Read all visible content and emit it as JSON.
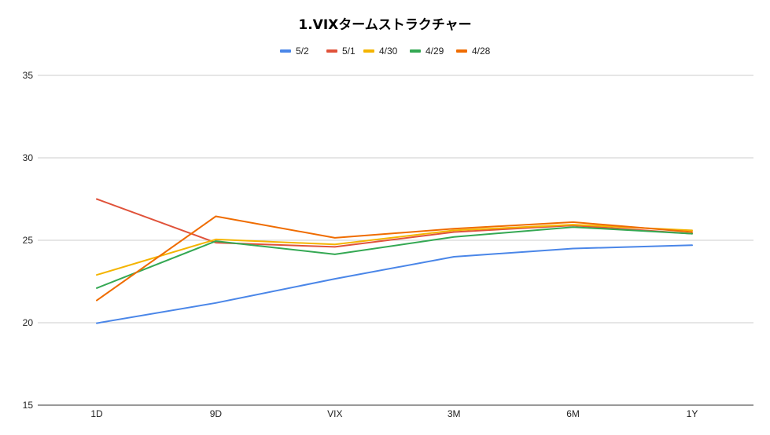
{
  "chart_data": {
    "type": "line",
    "title": "1.VIXタームストラクチャー",
    "xlabel": "",
    "ylabel": "",
    "categories": [
      "1D",
      "9D",
      "VIX",
      "3M",
      "6M",
      "1Y"
    ],
    "ylim": [
      15,
      35
    ],
    "yticks": [
      15,
      20,
      25,
      30,
      35
    ],
    "grid": true,
    "legend_position": "top",
    "series": [
      {
        "name": "5/2",
        "color": "#4a86e8",
        "values": [
          19.97,
          21.2,
          22.66,
          24.0,
          24.5,
          24.7
        ]
      },
      {
        "name": "5/1",
        "color": "#e0523a",
        "values": [
          27.5,
          24.85,
          24.6,
          25.5,
          25.9,
          25.4
        ]
      },
      {
        "name": "4/30",
        "color": "#f4b400",
        "values": [
          22.9,
          25.05,
          24.75,
          25.6,
          25.95,
          25.6
        ]
      },
      {
        "name": "4/29",
        "color": "#34a853",
        "values": [
          22.1,
          24.95,
          24.15,
          25.2,
          25.8,
          25.4
        ]
      },
      {
        "name": "4/28",
        "color": "#ef6c00",
        "values": [
          21.35,
          26.45,
          25.15,
          25.7,
          26.1,
          25.5
        ]
      }
    ]
  }
}
